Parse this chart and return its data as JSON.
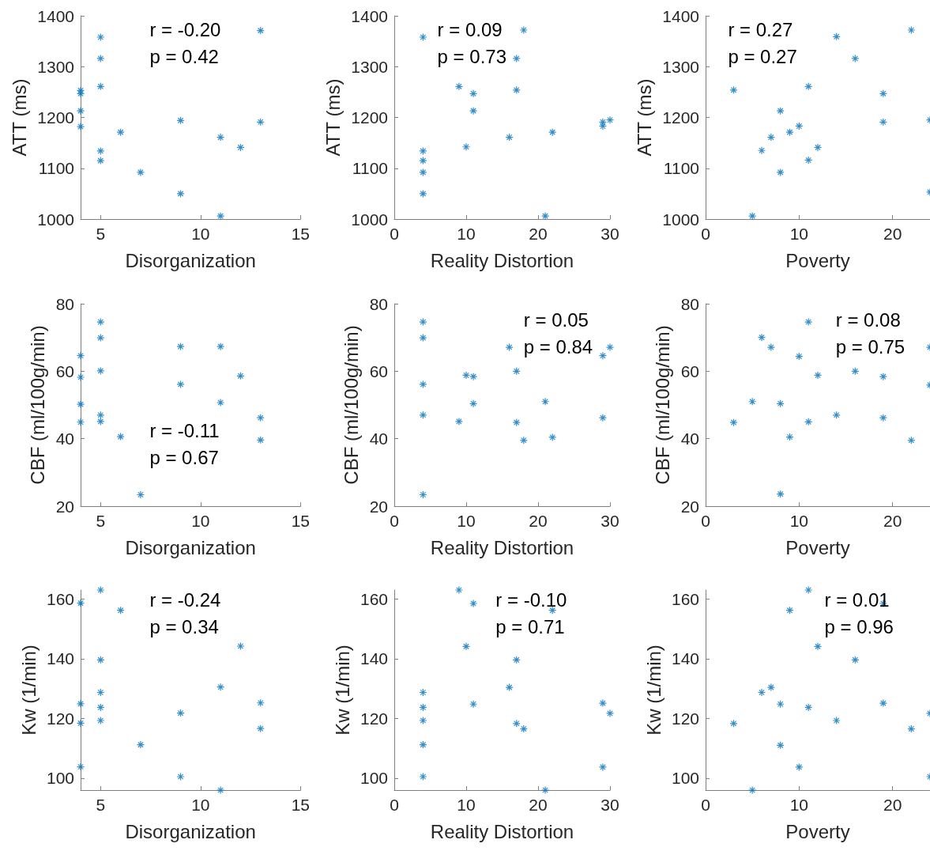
{
  "chart_data": [
    {
      "type": "scatter",
      "xlabel": "Disorganization",
      "ylabel": "ATT (ms)",
      "color": "#0072bd",
      "marker": "cross",
      "xlim": [
        4,
        15
      ],
      "xticks": [
        5,
        10,
        15
      ],
      "ylim": [
        1000,
        1400
      ],
      "yticks": [
        1000,
        1100,
        1200,
        1300,
        1400
      ],
      "annotations": [
        "r = -0.20",
        "p = 0.42"
      ],
      "x": [
        11,
        9,
        7,
        5,
        5,
        12,
        11,
        6,
        4,
        13,
        9,
        4,
        4,
        4,
        5,
        5,
        5,
        13
      ],
      "values": [
        1006,
        1050,
        1092,
        1115,
        1134,
        1141,
        1161,
        1171,
        1182,
        1191,
        1194,
        1213,
        1247,
        1253,
        1261,
        1316,
        1358,
        1371
      ]
    },
    {
      "type": "scatter",
      "xlabel": "Reality Distortion",
      "ylabel": "ATT (ms)",
      "color": "#0072bd",
      "marker": "cross",
      "xlim": [
        0,
        30
      ],
      "xticks": [
        0,
        10,
        20,
        30
      ],
      "ylim": [
        1000,
        1400
      ],
      "yticks": [
        1000,
        1100,
        1200,
        1300,
        1400
      ],
      "annotations": [
        "r = 0.09",
        "p = 0.73"
      ],
      "x": [
        21,
        4,
        4,
        4,
        4,
        10,
        16,
        22,
        29,
        29,
        30,
        11,
        11,
        17,
        9,
        17,
        4,
        18
      ],
      "values": [
        1006,
        1050,
        1092,
        1115,
        1134,
        1142,
        1161,
        1171,
        1183,
        1191,
        1195,
        1213,
        1247,
        1254,
        1261,
        1316,
        1358,
        1372
      ]
    },
    {
      "type": "scatter",
      "xlabel": "Poverty",
      "ylabel": "ATT (ms)",
      "color": "#0072bd",
      "marker": "cross",
      "xlim": [
        0,
        24
      ],
      "xticks": [
        0,
        10,
        20
      ],
      "ylim": [
        1000,
        1400
      ],
      "yticks": [
        1000,
        1100,
        1200,
        1300,
        1400
      ],
      "annotations": [
        "r = 0.27",
        "p = 0.27"
      ],
      "x": [
        5,
        24,
        8,
        11,
        6,
        12,
        7,
        9,
        10,
        19,
        24,
        8,
        19,
        3,
        11,
        16,
        14,
        22
      ],
      "values": [
        1006,
        1053,
        1092,
        1116,
        1135,
        1141,
        1161,
        1171,
        1183,
        1191,
        1195,
        1213,
        1247,
        1254,
        1261,
        1316,
        1359,
        1372
      ]
    },
    {
      "type": "scatter",
      "xlabel": "Disorganization",
      "ylabel": "CBF (ml/100g/min)",
      "color": "#0072bd",
      "marker": "cross",
      "xlim": [
        4,
        15
      ],
      "xticks": [
        5,
        10,
        15
      ],
      "ylim": [
        20,
        80
      ],
      "yticks": [
        20,
        40,
        60,
        80
      ],
      "annotations": [
        "r = -0.11",
        "p = 0.67"
      ],
      "x": [
        4,
        4,
        4,
        4,
        5,
        5,
        5,
        5,
        5,
        6,
        7,
        9,
        9,
        11,
        11,
        12,
        13,
        13
      ],
      "values": [
        64.6,
        58.2,
        50.2,
        44.9,
        74.6,
        69.9,
        60.1,
        47.0,
        45.1,
        40.6,
        23.4,
        67.3,
        56.1,
        67.3,
        50.7,
        58.6,
        46.2,
        39.6
      ]
    },
    {
      "type": "scatter",
      "xlabel": "Reality Distortion",
      "ylabel": "CBF (ml/100g/min)",
      "color": "#0072bd",
      "marker": "cross",
      "xlim": [
        0,
        30
      ],
      "xticks": [
        0,
        10,
        20,
        30
      ],
      "ylim": [
        20,
        80
      ],
      "yticks": [
        20,
        40,
        60,
        80
      ],
      "annotations": [
        "r = 0.05",
        "p = 0.84"
      ],
      "x": [
        4,
        4,
        4,
        4,
        4,
        9,
        10,
        11,
        11,
        16,
        17,
        17,
        18,
        21,
        22,
        29,
        29,
        30
      ],
      "values": [
        74.6,
        69.9,
        56.1,
        47.0,
        23.4,
        45.1,
        58.8,
        58.4,
        50.4,
        67.1,
        60.0,
        44.8,
        39.5,
        51.0,
        40.4,
        64.6,
        46.2,
        67.1
      ]
    },
    {
      "type": "scatter",
      "xlabel": "Poverty",
      "ylabel": "CBF (ml/100g/min)",
      "color": "#0072bd",
      "marker": "cross",
      "xlim": [
        0,
        24
      ],
      "xticks": [
        0,
        10,
        20
      ],
      "ylim": [
        20,
        80
      ],
      "yticks": [
        20,
        40,
        60,
        80
      ],
      "annotations": [
        "r = 0.08",
        "p = 0.75"
      ],
      "x": [
        3,
        5,
        6,
        7,
        8,
        8,
        9,
        10,
        11,
        11,
        12,
        14,
        16,
        19,
        19,
        22,
        24,
        24
      ],
      "values": [
        44.8,
        51.0,
        70.0,
        67.1,
        50.4,
        23.6,
        40.5,
        64.4,
        74.6,
        45.0,
        58.8,
        47.0,
        60.0,
        58.4,
        46.2,
        39.5,
        67.1,
        55.9
      ]
    },
    {
      "type": "scatter",
      "xlabel": "Disorganization",
      "ylabel": "Kw (1/min)",
      "color": "#0072bd",
      "marker": "cross",
      "xlim": [
        4,
        15
      ],
      "xticks": [
        5,
        10,
        15
      ],
      "ylim": [
        96,
        163
      ],
      "yticks": [
        100,
        120,
        140,
        160
      ],
      "annotations": [
        "r = -0.24",
        "p = 0.34"
      ],
      "x": [
        4,
        4,
        4,
        4,
        5,
        5,
        5,
        5,
        5,
        6,
        7,
        9,
        9,
        11,
        11,
        12,
        13,
        13
      ],
      "values": [
        158.6,
        124.9,
        118.4,
        103.8,
        163,
        139.6,
        128.7,
        123.7,
        119.3,
        156.2,
        111.2,
        121.8,
        100.5,
        130.5,
        96,
        144.2,
        125.2,
        116.6
      ]
    },
    {
      "type": "scatter",
      "xlabel": "Reality Distortion",
      "ylabel": "Kw (1/min)",
      "color": "#0072bd",
      "marker": "cross",
      "xlim": [
        0,
        30
      ],
      "xticks": [
        0,
        10,
        20,
        30
      ],
      "ylim": [
        96,
        163
      ],
      "yticks": [
        100,
        120,
        140,
        160
      ],
      "annotations": [
        "r = -0.10",
        "p = 0.71"
      ],
      "x": [
        4,
        4,
        4,
        4,
        4,
        9,
        10,
        11,
        11,
        16,
        17,
        17,
        18,
        21,
        22,
        29,
        29,
        30
      ],
      "values": [
        128.7,
        123.7,
        119.3,
        111.2,
        100.5,
        163,
        144.1,
        158.5,
        124.8,
        130.4,
        139.6,
        118.3,
        116.5,
        96,
        156.2,
        125.1,
        103.7,
        121.7
      ]
    },
    {
      "type": "scatter",
      "xlabel": "Poverty",
      "ylabel": "Kw (1/min)",
      "color": "#0072bd",
      "marker": "cross",
      "xlim": [
        0,
        24
      ],
      "xticks": [
        0,
        10,
        20
      ],
      "ylim": [
        96,
        163
      ],
      "yticks": [
        100,
        120,
        140,
        160
      ],
      "annotations": [
        "r = 0.01",
        "p = 0.96"
      ],
      "x": [
        3,
        5,
        6,
        7,
        8,
        8,
        9,
        10,
        11,
        11,
        12,
        14,
        16,
        19,
        19,
        22,
        24,
        24
      ],
      "values": [
        118.3,
        96,
        128.7,
        130.4,
        124.8,
        111.0,
        156.2,
        103.7,
        163,
        123.7,
        144.1,
        119.3,
        139.6,
        158.5,
        125.1,
        116.5,
        121.7,
        100.5
      ]
    }
  ]
}
